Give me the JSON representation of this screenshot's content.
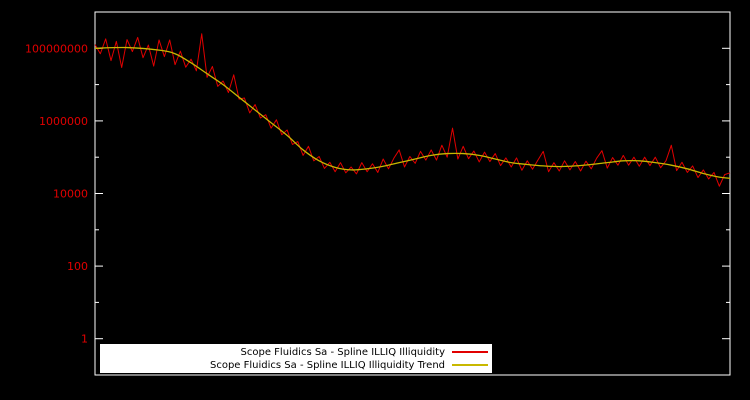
{
  "page": {
    "background": "#000000",
    "plot_border_color": "#ffffff"
  },
  "chart_data": {
    "type": "line",
    "title": "",
    "xlabel": "",
    "ylabel": "",
    "y_scale": "log10",
    "ylim": [
      0.1,
      1000000000
    ],
    "ylim_log10": [
      -1,
      9
    ],
    "grid": false,
    "legend_position": "bottom-center-inside",
    "legend_background": "#ffffff",
    "legend_text_color": "#000000",
    "axis_label_color": "#e10000",
    "x_tick_labels": [],
    "y_ticks": [
      {
        "label": "1",
        "log10": 0
      },
      {
        "label": "100",
        "log10": 2
      },
      {
        "label": "10000",
        "log10": 4
      },
      {
        "label": "1000000",
        "log10": 6
      },
      {
        "label": "100000000",
        "log10": 8
      }
    ],
    "n_points": 120,
    "series": [
      {
        "name": "Scope Fluidics Sa - Spline ILLIQ Illiquidity",
        "color": "#e10000",
        "style": "noisy-line",
        "values_log10": [
          8.1,
          7.85,
          8.26,
          7.66,
          8.19,
          7.47,
          8.24,
          7.91,
          8.3,
          7.74,
          8.09,
          7.51,
          8.23,
          7.77,
          8.23,
          7.55,
          7.92,
          7.48,
          7.7,
          7.38,
          8.4,
          7.2,
          7.5,
          6.95,
          7.1,
          6.78,
          7.27,
          6.6,
          6.63,
          6.22,
          6.45,
          6.08,
          6.17,
          5.8,
          6.03,
          5.62,
          5.75,
          5.35,
          5.43,
          5.05,
          5.3,
          4.9,
          5.02,
          4.69,
          4.86,
          4.6,
          4.85,
          4.57,
          4.73,
          4.54,
          4.85,
          4.6,
          4.82,
          4.58,
          4.95,
          4.68,
          4.97,
          5.2,
          4.73,
          5.02,
          4.83,
          5.16,
          4.92,
          5.2,
          4.92,
          5.33,
          5.0,
          5.8,
          4.95,
          5.3,
          4.96,
          5.17,
          4.87,
          5.14,
          4.88,
          5.1,
          4.77,
          4.98,
          4.73,
          4.98,
          4.64,
          4.9,
          4.67,
          4.92,
          5.16,
          4.6,
          4.85,
          4.62,
          4.9,
          4.65,
          4.88,
          4.62,
          4.89,
          4.68,
          4.97,
          5.18,
          4.7,
          4.99,
          4.78,
          5.05,
          4.78,
          5.0,
          4.75,
          5.0,
          4.77,
          5.0,
          4.71,
          4.9,
          5.33,
          4.63,
          4.86,
          4.58,
          4.76,
          4.44,
          4.65,
          4.4,
          4.58,
          4.2,
          4.52,
          4.57
        ]
      },
      {
        "name": "Scope Fluidics Sa - Spline ILLIQ Illiquidity Trend",
        "color": "#c8b800",
        "style": "smooth-line",
        "points_log10": [
          [
            0,
            8.0
          ],
          [
            6,
            8.02
          ],
          [
            12,
            7.95
          ],
          [
            15,
            7.85
          ],
          [
            18,
            7.6
          ],
          [
            21,
            7.3
          ],
          [
            24,
            7.0
          ],
          [
            27,
            6.65
          ],
          [
            30,
            6.3
          ],
          [
            33,
            5.95
          ],
          [
            36,
            5.6
          ],
          [
            39,
            5.2
          ],
          [
            42,
            4.9
          ],
          [
            45,
            4.72
          ],
          [
            48,
            4.65
          ],
          [
            51,
            4.68
          ],
          [
            54,
            4.75
          ],
          [
            57,
            4.85
          ],
          [
            60,
            4.95
          ],
          [
            63,
            5.05
          ],
          [
            66,
            5.1
          ],
          [
            69,
            5.1
          ],
          [
            72,
            5.05
          ],
          [
            75,
            4.95
          ],
          [
            78,
            4.85
          ],
          [
            81,
            4.8
          ],
          [
            84,
            4.76
          ],
          [
            87,
            4.74
          ],
          [
            90,
            4.76
          ],
          [
            93,
            4.8
          ],
          [
            96,
            4.85
          ],
          [
            99,
            4.9
          ],
          [
            102,
            4.9
          ],
          [
            105,
            4.85
          ],
          [
            108,
            4.78
          ],
          [
            111,
            4.68
          ],
          [
            114,
            4.55
          ],
          [
            117,
            4.45
          ],
          [
            119,
            4.42
          ]
        ]
      }
    ]
  }
}
